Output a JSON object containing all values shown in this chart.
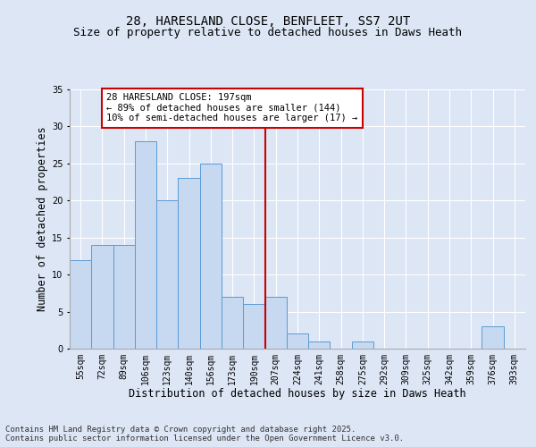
{
  "title_line1": "28, HARESLAND CLOSE, BENFLEET, SS7 2UT",
  "title_line2": "Size of property relative to detached houses in Daws Heath",
  "xlabel": "Distribution of detached houses by size in Daws Heath",
  "ylabel": "Number of detached properties",
  "bar_labels": [
    "55sqm",
    "72sqm",
    "89sqm",
    "106sqm",
    "123sqm",
    "140sqm",
    "156sqm",
    "173sqm",
    "190sqm",
    "207sqm",
    "224sqm",
    "241sqm",
    "258sqm",
    "275sqm",
    "292sqm",
    "309sqm",
    "325sqm",
    "342sqm",
    "359sqm",
    "376sqm",
    "393sqm"
  ],
  "bar_values": [
    12,
    14,
    14,
    28,
    20,
    23,
    25,
    7,
    6,
    7,
    2,
    1,
    0,
    1,
    0,
    0,
    0,
    0,
    0,
    3,
    0
  ],
  "bar_color": "#c7d9f0",
  "bar_edgecolor": "#5b9bd5",
  "vline_x": 8.5,
  "vline_color": "#cc0000",
  "annotation_text": "28 HARESLAND CLOSE: 197sqm\n← 89% of detached houses are smaller (144)\n10% of semi-detached houses are larger (17) →",
  "annotation_box_edgecolor": "#cc0000",
  "annotation_box_facecolor": "#ffffff",
  "ylim": [
    0,
    35
  ],
  "yticks": [
    0,
    5,
    10,
    15,
    20,
    25,
    30,
    35
  ],
  "background_color": "#dce6f5",
  "fig_background_color": "#dce6f5",
  "grid_color": "#ffffff",
  "footer_text": "Contains HM Land Registry data © Crown copyright and database right 2025.\nContains public sector information licensed under the Open Government Licence v3.0.",
  "title_fontsize": 10,
  "subtitle_fontsize": 9,
  "axis_label_fontsize": 8.5,
  "tick_fontsize": 7,
  "annotation_fontsize": 7.5,
  "footer_fontsize": 6.5
}
